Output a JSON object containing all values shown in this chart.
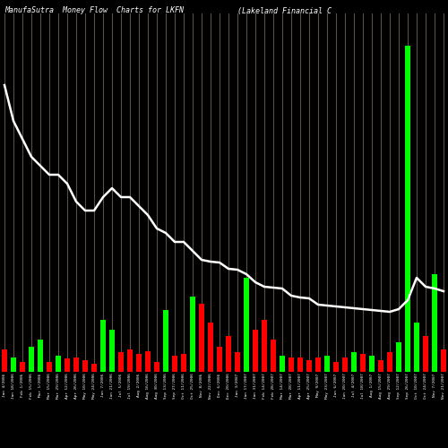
{
  "title_left": "ManufaSutra  Money Flow  Charts for LKFN",
  "title_right": "(Lakeland Financial C",
  "background_color": "#000000",
  "vline_color": "#8B4500",
  "line_color": "#ffffff",
  "green_color": "#00ff00",
  "red_color": "#ff0000",
  "categories": [
    "Jan 4/2006",
    "Jan 18/2006",
    "Feb 1/2006",
    "Feb 15/2006",
    "Mar 1/2006",
    "Mar 15/2006",
    "Mar 29/2006",
    "Apr 12/2006",
    "Apr 26/2006",
    "May 10/2006",
    "May 24/2006",
    "Jun 7/2006",
    "Jun 21/2006",
    "Jul 5/2006",
    "Jul 19/2006",
    "Aug 2/2006",
    "Aug 16/2006",
    "Aug 30/2006",
    "Sep 13/2006",
    "Sep 27/2006",
    "Oct 11/2006",
    "Oct 25/2006",
    "Nov 8/2006",
    "Nov 22/2006",
    "Dec 6/2006",
    "Dec 20/2006",
    "Jan 3/2007",
    "Jan 17/2007",
    "Jan 31/2007",
    "Feb 14/2007",
    "Feb 28/2007",
    "Mar 14/2007",
    "Mar 28/2007",
    "Apr 11/2007",
    "Apr 25/2007",
    "May 9/2007",
    "May 23/2007",
    "Jun 6/2007",
    "Jun 20/2007",
    "Jul 4/2007",
    "Jul 18/2007",
    "Aug 1/2007",
    "Aug 15/2007",
    "Aug 29/2007",
    "Sep 12/2007",
    "Sep 26/2007",
    "Oct 10/2007",
    "Oct 24/2007",
    "Nov 7/2007",
    "Nov 21/2007"
  ],
  "bar_values": [
    3.5,
    2.2,
    1.5,
    3.8,
    5.0,
    1.5,
    2.5,
    2.0,
    2.2,
    1.8,
    1.2,
    8.0,
    6.5,
    3.0,
    3.5,
    2.8,
    3.2,
    1.5,
    9.5,
    2.5,
    2.8,
    11.5,
    10.5,
    7.5,
    3.8,
    5.5,
    3.0,
    14.5,
    6.5,
    8.0,
    5.0,
    2.5,
    2.2,
    2.2,
    1.8,
    2.2,
    2.5,
    1.5,
    2.2,
    3.0,
    2.8,
    2.5,
    1.8,
    3.0,
    4.5,
    50.0,
    7.5,
    5.5,
    15.0,
    3.5
  ],
  "bar_colors": [
    "red",
    "green",
    "red",
    "green",
    "green",
    "red",
    "green",
    "red",
    "red",
    "red",
    "red",
    "green",
    "green",
    "red",
    "red",
    "red",
    "red",
    "red",
    "green",
    "red",
    "red",
    "green",
    "red",
    "red",
    "red",
    "red",
    "red",
    "green",
    "red",
    "red",
    "red",
    "green",
    "red",
    "red",
    "red",
    "red",
    "green",
    "red",
    "red",
    "green",
    "red",
    "green",
    "red",
    "red",
    "green",
    "green",
    "green",
    "red",
    "green",
    "red"
  ],
  "line_values": [
    0.82,
    0.78,
    0.76,
    0.74,
    0.73,
    0.72,
    0.72,
    0.71,
    0.69,
    0.68,
    0.68,
    0.695,
    0.705,
    0.695,
    0.695,
    0.685,
    0.675,
    0.66,
    0.655,
    0.645,
    0.645,
    0.635,
    0.625,
    0.623,
    0.622,
    0.615,
    0.614,
    0.609,
    0.6,
    0.595,
    0.594,
    0.593,
    0.585,
    0.583,
    0.582,
    0.575,
    0.574,
    0.573,
    0.572,
    0.571,
    0.57,
    0.569,
    0.568,
    0.567,
    0.57,
    0.58,
    0.605,
    0.595,
    0.593,
    0.59
  ],
  "ylim_bar": [
    0,
    55
  ],
  "ylim_line": [
    0.5,
    0.9
  ]
}
